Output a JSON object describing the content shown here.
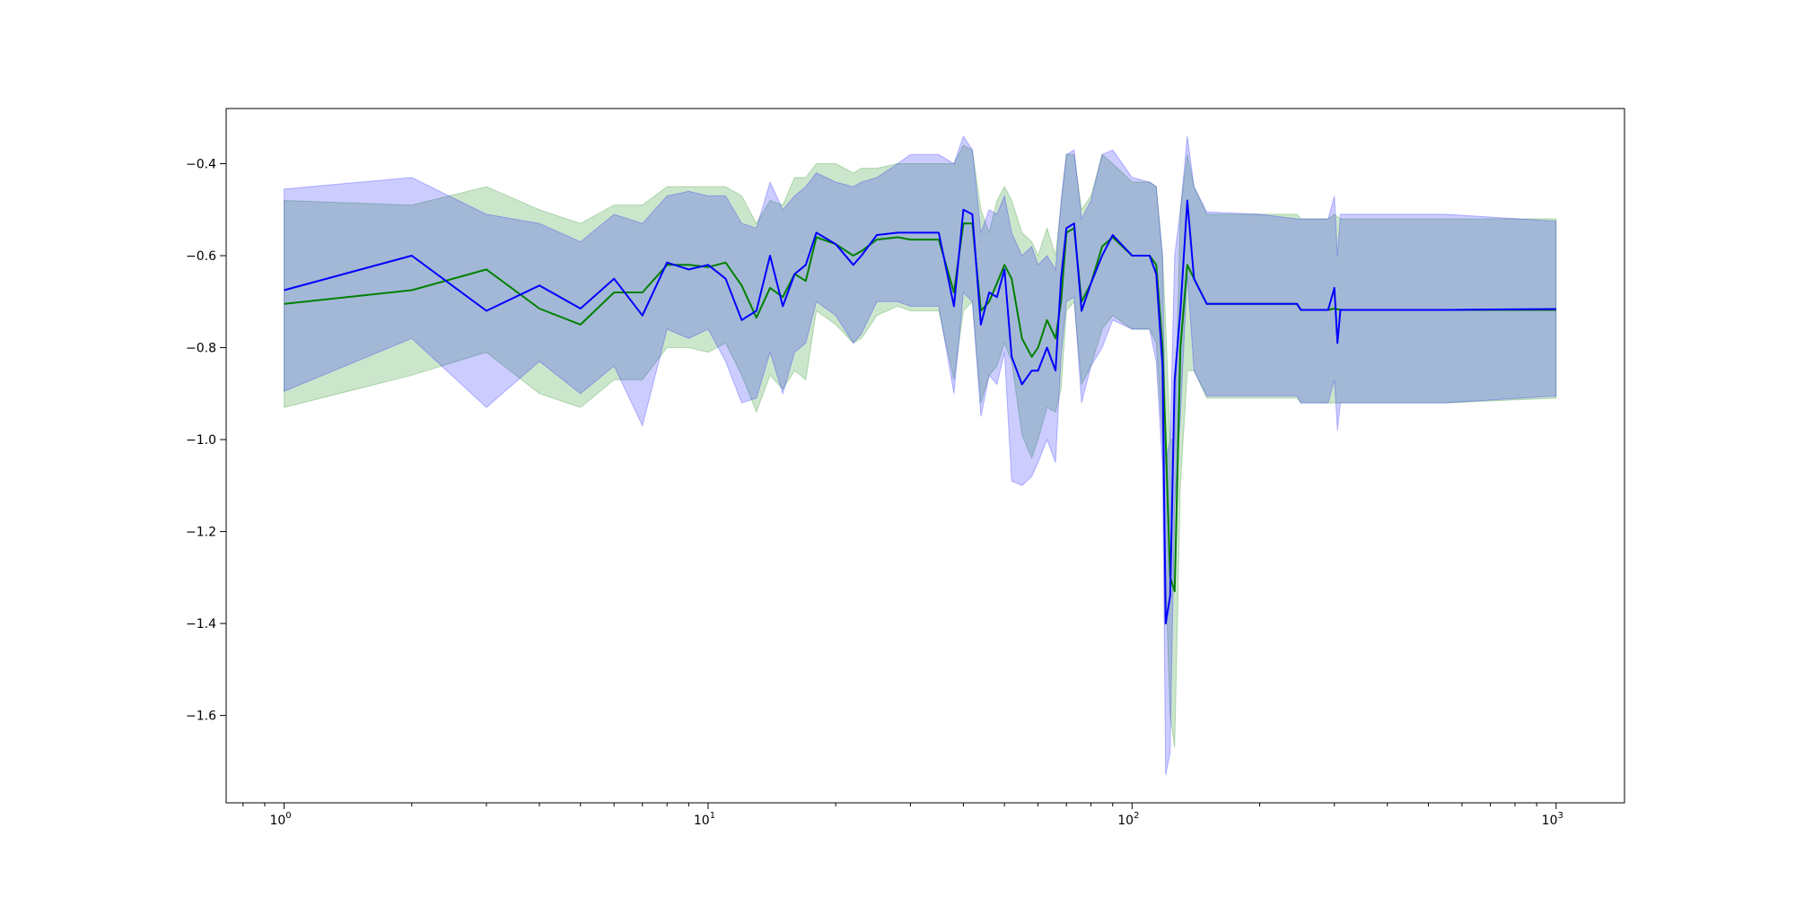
{
  "colors": {
    "green_line": "#008000",
    "green_band": "#008000",
    "blue_line": "#0000ff",
    "blue_band": "#0000ff",
    "axes": "#000000",
    "background": "#ffffff"
  },
  "chart_data": {
    "type": "line",
    "title": "",
    "xlabel": "",
    "ylabel": "",
    "xscale": "log",
    "xlim": [
      0.73,
      1450
    ],
    "ylim": [
      -1.79,
      -0.28
    ],
    "grid": false,
    "legend": "none",
    "x_ticks": [
      {
        "value": 1,
        "base": "10",
        "exp": "0"
      },
      {
        "value": 10,
        "base": "10",
        "exp": "1"
      },
      {
        "value": 100,
        "base": "10",
        "exp": "2"
      },
      {
        "value": 1000,
        "base": "10",
        "exp": "3"
      }
    ],
    "y_ticks": [
      {
        "value": -0.4,
        "label": "−0.4"
      },
      {
        "value": -0.6,
        "label": "−0.6"
      },
      {
        "value": -0.8,
        "label": "−0.8"
      },
      {
        "value": -1.0,
        "label": "−1.0"
      },
      {
        "value": -1.2,
        "label": "−1.2"
      },
      {
        "value": -1.4,
        "label": "−1.4"
      },
      {
        "value": -1.6,
        "label": "−1.6"
      }
    ],
    "series": [
      {
        "color": "#008000",
        "x": [
          1,
          2,
          3,
          4,
          5,
          6,
          7,
          8,
          9,
          10,
          11,
          12,
          13,
          14,
          15,
          16,
          17,
          18,
          20,
          22,
          23,
          25,
          28,
          30,
          35,
          38,
          40,
          42,
          44,
          46,
          48,
          50,
          52,
          55,
          58,
          60,
          63,
          66,
          68,
          70,
          73,
          76,
          80,
          85,
          90,
          100,
          110,
          114,
          118,
          120,
          123,
          126,
          130,
          135,
          140,
          150,
          200,
          245,
          250,
          290,
          300,
          310,
          550,
          1000
        ],
        "y": [
          -0.705,
          -0.675,
          -0.63,
          -0.715,
          -0.75,
          -0.68,
          -0.68,
          -0.62,
          -0.62,
          -0.625,
          -0.615,
          -0.665,
          -0.735,
          -0.67,
          -0.69,
          -0.64,
          -0.655,
          -0.56,
          -0.575,
          -0.6,
          -0.59,
          -0.565,
          -0.56,
          -0.565,
          -0.565,
          -0.68,
          -0.53,
          -0.53,
          -0.72,
          -0.7,
          -0.66,
          -0.62,
          -0.65,
          -0.78,
          -0.82,
          -0.8,
          -0.74,
          -0.78,
          -0.7,
          -0.55,
          -0.54,
          -0.7,
          -0.66,
          -0.58,
          -0.56,
          -0.6,
          -0.6,
          -0.62,
          -0.8,
          -1.0,
          -1.3,
          -1.33,
          -0.8,
          -0.62,
          -0.65,
          -0.705,
          -0.705,
          -0.705,
          -0.718,
          -0.718,
          -0.715,
          -0.718,
          -0.718,
          -0.718
        ],
        "upper": [
          -0.48,
          -0.49,
          -0.45,
          -0.5,
          -0.53,
          -0.49,
          -0.49,
          -0.45,
          -0.45,
          -0.45,
          -0.45,
          -0.47,
          -0.53,
          -0.48,
          -0.49,
          -0.43,
          -0.43,
          -0.4,
          -0.4,
          -0.42,
          -0.41,
          -0.41,
          -0.4,
          -0.4,
          -0.4,
          -0.4,
          -0.36,
          -0.37,
          -0.5,
          -0.55,
          -0.48,
          -0.45,
          -0.48,
          -0.55,
          -0.57,
          -0.6,
          -0.54,
          -0.6,
          -0.49,
          -0.38,
          -0.38,
          -0.5,
          -0.47,
          -0.38,
          -0.4,
          -0.44,
          -0.44,
          -0.45,
          -0.6,
          -0.75,
          -1.0,
          -1.0,
          -0.5,
          -0.38,
          -0.45,
          -0.51,
          -0.51,
          -0.51,
          -0.52,
          -0.52,
          -0.51,
          -0.52,
          -0.52,
          -0.52
        ],
        "lower": [
          -0.93,
          -0.86,
          -0.81,
          -0.9,
          -0.93,
          -0.87,
          -0.87,
          -0.8,
          -0.8,
          -0.81,
          -0.79,
          -0.86,
          -0.94,
          -0.86,
          -0.89,
          -0.85,
          -0.87,
          -0.72,
          -0.75,
          -0.79,
          -0.78,
          -0.73,
          -0.71,
          -0.72,
          -0.72,
          -0.87,
          -0.72,
          -0.7,
          -0.92,
          -0.86,
          -0.84,
          -0.79,
          -0.83,
          -0.99,
          -1.04,
          -1.0,
          -0.93,
          -0.94,
          -0.89,
          -0.72,
          -0.7,
          -0.88,
          -0.84,
          -0.76,
          -0.73,
          -0.76,
          -0.76,
          -0.79,
          -1.0,
          -1.3,
          -1.6,
          -1.67,
          -1.1,
          -0.85,
          -0.85,
          -0.91,
          -0.91,
          -0.91,
          -0.92,
          -0.92,
          -0.92,
          -0.92,
          -0.92,
          -0.91
        ]
      },
      {
        "color": "#0000ff",
        "x": [
          1,
          2,
          3,
          4,
          5,
          6,
          7,
          8,
          9,
          10,
          11,
          12,
          13,
          14,
          15,
          16,
          17,
          18,
          20,
          22,
          23,
          25,
          28,
          30,
          35,
          38,
          40,
          42,
          44,
          46,
          48,
          50,
          52,
          55,
          58,
          60,
          63,
          66,
          68,
          70,
          73,
          76,
          80,
          85,
          90,
          100,
          110,
          114,
          118,
          120,
          123,
          126,
          130,
          135,
          140,
          150,
          200,
          245,
          250,
          290,
          300,
          305,
          310,
          550,
          1000
        ],
        "y": [
          -0.675,
          -0.6,
          -0.72,
          -0.665,
          -0.715,
          -0.65,
          -0.73,
          -0.615,
          -0.63,
          -0.62,
          -0.65,
          -0.74,
          -0.72,
          -0.6,
          -0.71,
          -0.64,
          -0.62,
          -0.55,
          -0.575,
          -0.62,
          -0.6,
          -0.555,
          -0.55,
          -0.55,
          -0.55,
          -0.71,
          -0.5,
          -0.51,
          -0.75,
          -0.68,
          -0.69,
          -0.63,
          -0.82,
          -0.88,
          -0.85,
          -0.85,
          -0.8,
          -0.85,
          -0.65,
          -0.54,
          -0.53,
          -0.72,
          -0.66,
          -0.6,
          -0.555,
          -0.6,
          -0.6,
          -0.64,
          -0.84,
          -1.4,
          -1.34,
          -0.87,
          -0.72,
          -0.48,
          -0.65,
          -0.705,
          -0.705,
          -0.705,
          -0.718,
          -0.718,
          -0.67,
          -0.79,
          -0.718,
          -0.718,
          -0.716
        ],
        "upper": [
          -0.455,
          -0.43,
          -0.51,
          -0.53,
          -0.57,
          -0.51,
          -0.53,
          -0.47,
          -0.46,
          -0.47,
          -0.47,
          -0.53,
          -0.54,
          -0.44,
          -0.5,
          -0.47,
          -0.45,
          -0.42,
          -0.44,
          -0.45,
          -0.44,
          -0.43,
          -0.4,
          -0.38,
          -0.38,
          -0.4,
          -0.34,
          -0.37,
          -0.55,
          -0.5,
          -0.51,
          -0.47,
          -0.55,
          -0.6,
          -0.58,
          -0.62,
          -0.6,
          -0.63,
          -0.48,
          -0.38,
          -0.37,
          -0.52,
          -0.48,
          -0.38,
          -0.37,
          -0.43,
          -0.44,
          -0.45,
          -0.6,
          -1.05,
          -1.0,
          -0.6,
          -0.5,
          -0.34,
          -0.45,
          -0.505,
          -0.51,
          -0.52,
          -0.52,
          -0.52,
          -0.47,
          -0.6,
          -0.51,
          -0.51,
          -0.525
        ],
        "lower": [
          -0.895,
          -0.78,
          -0.93,
          -0.83,
          -0.9,
          -0.84,
          -0.97,
          -0.76,
          -0.78,
          -0.76,
          -0.83,
          -0.92,
          -0.91,
          -0.81,
          -0.9,
          -0.81,
          -0.79,
          -0.7,
          -0.73,
          -0.79,
          -0.77,
          -0.7,
          -0.7,
          -0.71,
          -0.71,
          -0.9,
          -0.68,
          -0.7,
          -0.95,
          -0.86,
          -0.88,
          -0.81,
          -1.09,
          -1.1,
          -1.08,
          -1.05,
          -1.0,
          -1.05,
          -0.82,
          -0.7,
          -0.69,
          -0.92,
          -0.84,
          -0.8,
          -0.74,
          -0.76,
          -0.76,
          -0.83,
          -1.06,
          -1.73,
          -1.68,
          -1.14,
          -0.95,
          -0.64,
          -0.85,
          -0.905,
          -0.905,
          -0.905,
          -0.92,
          -0.92,
          -0.87,
          -0.98,
          -0.92,
          -0.92,
          -0.905
        ]
      }
    ]
  }
}
